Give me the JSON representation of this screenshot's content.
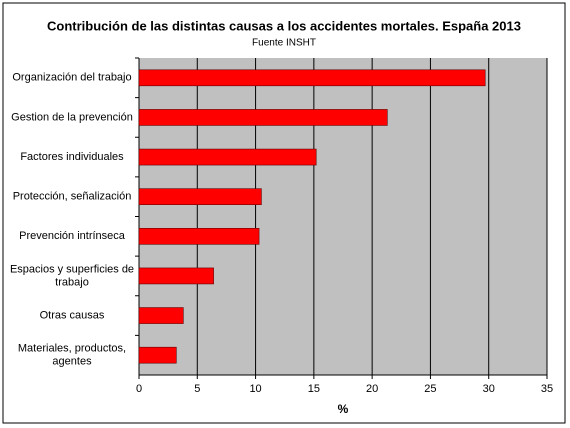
{
  "chart_data": {
    "type": "hbar",
    "title": "Contribución de las distintas causas a los accidentes mortales. España 2013",
    "subtitle": "Fuente INSHT",
    "x_label": "%",
    "categories": [
      "Organización del trabajo",
      "Gestion de la prevención",
      "Factores individuales",
      "Protección, señalización",
      "Prevención intrínseca",
      "Espacios y superficies de\ntrabajo",
      "Otras causas",
      "Materiales, productos,\nagentes"
    ],
    "values": [
      29.7,
      21.3,
      15.2,
      10.5,
      10.3,
      6.4,
      3.8,
      3.2
    ],
    "color": "#ff0000",
    "xlim": [
      0,
      35
    ],
    "xticks": [
      0,
      5,
      10,
      15,
      20,
      25,
      30,
      35
    ],
    "grid": true
  }
}
